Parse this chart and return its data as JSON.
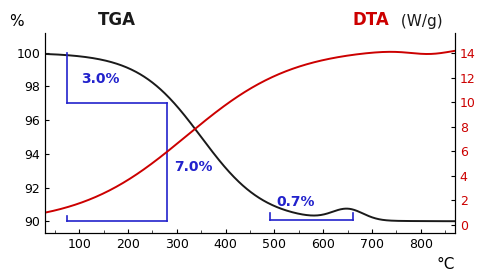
{
  "title_left": "TGA",
  "title_right": "DTA",
  "title_right_unit": " (W/g)",
  "ylabel_left": "%",
  "xlabel": "°C",
  "xlim": [
    30,
    870
  ],
  "ylim_left": [
    89.3,
    101.2
  ],
  "ylim_right": [
    -0.7,
    15.7
  ],
  "yticks_left": [
    90,
    92,
    94,
    96,
    98,
    100
  ],
  "yticks_right": [
    0,
    2,
    4,
    6,
    8,
    10,
    12,
    14
  ],
  "xticks": [
    100,
    200,
    300,
    400,
    500,
    600,
    700,
    800
  ],
  "tga_color": "#1a1a1a",
  "dta_color": "#cc0000",
  "annotation_color": "#2222cc",
  "annotation_3pct": "3.0%",
  "annotation_7pct": "7.0%",
  "annotation_07pct": "0.7%",
  "background_color": "#ffffff",
  "fontsize_title": 11,
  "fontsize_ticks": 9,
  "fontsize_annotation": 10,
  "ann_3pct_x1": 75,
  "ann_3pct_x2": 280,
  "ann_3pct_y1": 100.0,
  "ann_3pct_y2": 97.0,
  "ann_7pct_x1": 280,
  "ann_7pct_x2": 280,
  "ann_7pct_y1": 97.0,
  "ann_7pct_y2": 90.0,
  "ann_07pct_x1": 490,
  "ann_07pct_x2": 660,
  "ann_07pct_y": 90.0
}
